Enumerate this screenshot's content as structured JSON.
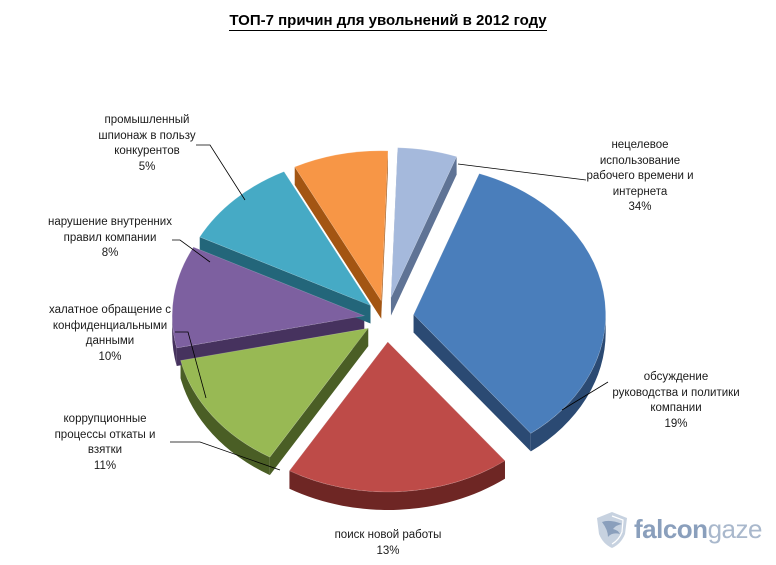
{
  "title": "ТОП-7 причин для увольнений в 2012 году",
  "brand": {
    "name_bold": "falcon",
    "name_light": "gaze",
    "logo_icon": "falcon-shield-icon"
  },
  "chart_data": {
    "type": "pie",
    "style": "3d-exploded",
    "title": "ТОП-7 причин для увольнений в 2012 году",
    "legend": "none",
    "slices": [
      {
        "label": "нецелевое использование рабочего времени и интернета",
        "value": 34,
        "pct": "34%",
        "color": "#4A7EBB",
        "dark": "#2B4A73"
      },
      {
        "label": "обсуждение руководства и политики компании",
        "value": 19,
        "pct": "19%",
        "color": "#BE4B48",
        "dark": "#6E2624"
      },
      {
        "label": "поиск новой работы",
        "value": 13,
        "pct": "13%",
        "color": "#98B954",
        "dark": "#4A5E25"
      },
      {
        "label": "коррупционные процессы откаты и взятки",
        "value": 11,
        "pct": "11%",
        "color": "#7D60A0",
        "dark": "#46325E"
      },
      {
        "label": "халатное обращение с конфиденциальными данными",
        "value": 10,
        "pct": "10%",
        "color": "#46AAC5",
        "dark": "#23667A"
      },
      {
        "label": "нарушение внутренних правил компании",
        "value": 8,
        "pct": "8%",
        "color": "#F79646",
        "dark": "#A35512"
      },
      {
        "label": "промышленный шпионаж в пользу конкурентов",
        "value": 5,
        "pct": "5%",
        "color": "#A5B9DC",
        "dark": "#5F7395"
      }
    ],
    "label_lines": [
      [
        "нецелевое",
        "использование",
        "рабочего времени и",
        "интернета"
      ],
      [
        "обсуждение",
        "руководства и политики",
        "компании"
      ],
      [
        "поиск новой работы"
      ],
      [
        "коррупционные",
        "процессы откаты и",
        "взятки"
      ],
      [
        "халатное обращение с",
        "конфиденциальными",
        "данными"
      ],
      [
        "нарушение внутренних",
        "правил компании"
      ],
      [
        "промышленный",
        "шпионаж в пользу",
        "конкурентов"
      ]
    ]
  }
}
